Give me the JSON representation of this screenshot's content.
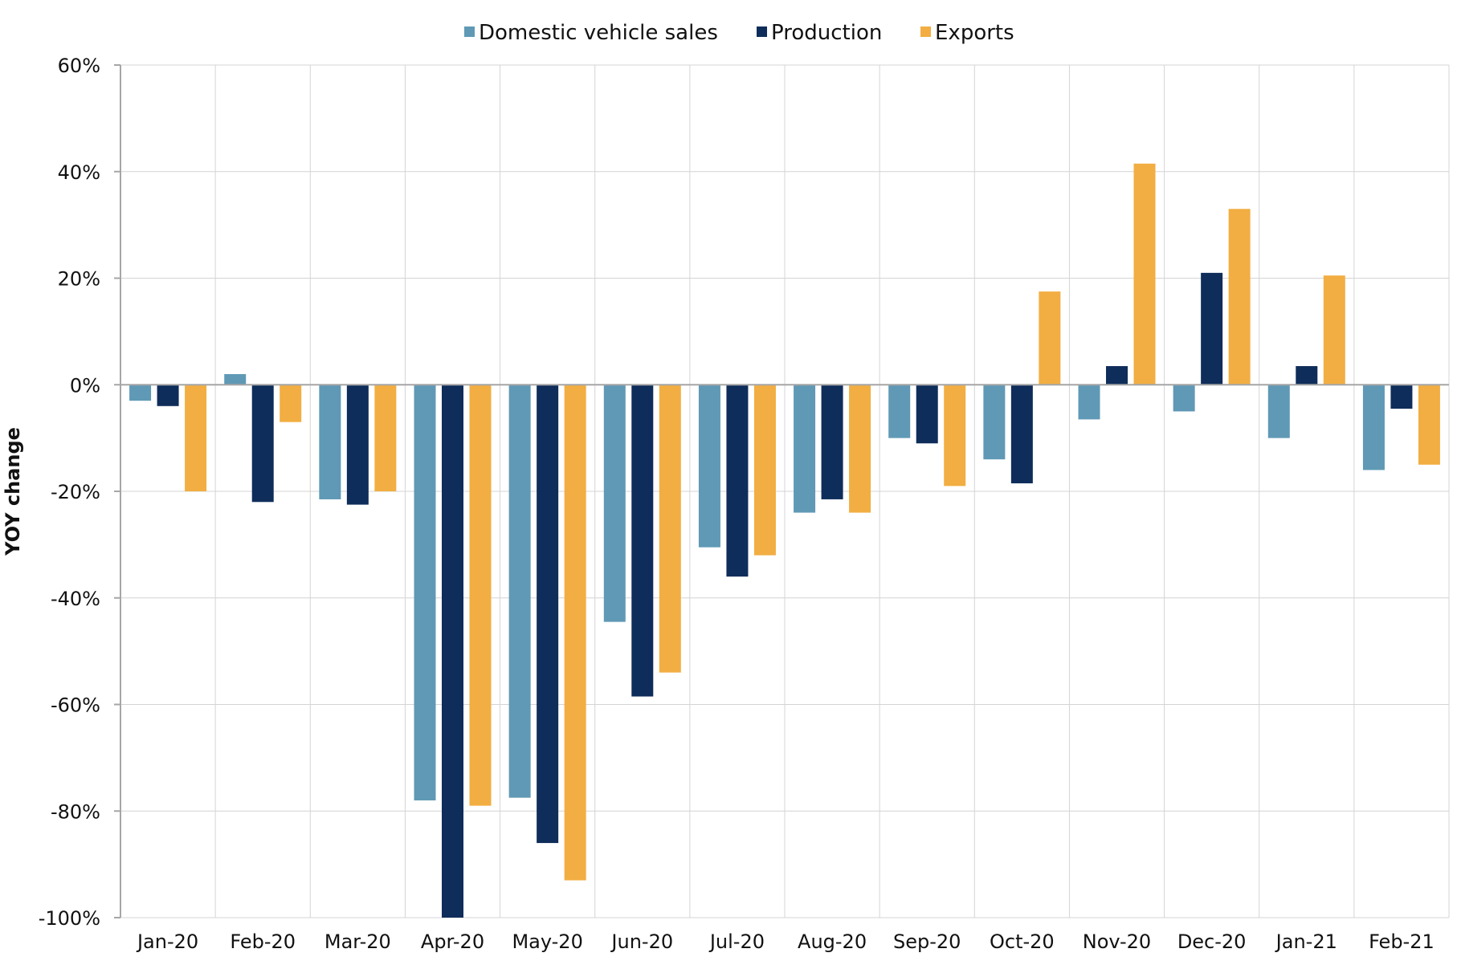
{
  "chart_data": {
    "type": "bar",
    "title": "",
    "xlabel": "",
    "ylabel": "YOY change",
    "ylim": [
      -100,
      60
    ],
    "y_ticks": [
      60,
      40,
      20,
      0,
      -20,
      -40,
      -60,
      -80,
      -100
    ],
    "y_tick_labels": [
      "60%",
      "40%",
      "20%",
      "0%",
      "-20%",
      "-40%",
      "-60%",
      "-80%",
      "-100%"
    ],
    "grid": true,
    "legend_position": "top-center",
    "categories": [
      "Jan-20",
      "Feb-20",
      "Mar-20",
      "Apr-20",
      "May-20",
      "Jun-20",
      "Jul-20",
      "Aug-20",
      "Sep-20",
      "Oct-20",
      "Nov-20",
      "Dec-20",
      "Jan-21",
      "Feb-21"
    ],
    "series": [
      {
        "name": "Domestic vehicle sales",
        "color": "#5f99b5",
        "values": [
          -3,
          2,
          -21.5,
          -78,
          -77.5,
          -44.5,
          -30.5,
          -24,
          -10,
          -14,
          -6.5,
          -5,
          -10,
          -16
        ]
      },
      {
        "name": "Production",
        "color": "#0f2d5a",
        "values": [
          -4,
          -22,
          -22.5,
          -100,
          -86,
          -58.5,
          -36,
          -21.5,
          -11,
          -18.5,
          3.5,
          21,
          3.5,
          -4.5
        ]
      },
      {
        "name": "Exports",
        "color": "#f2ae42",
        "values": [
          -20,
          -7,
          -20,
          -79,
          -93,
          -54,
          -32,
          -24,
          -19,
          17.5,
          41.5,
          33,
          20.5,
          -15
        ]
      }
    ]
  }
}
